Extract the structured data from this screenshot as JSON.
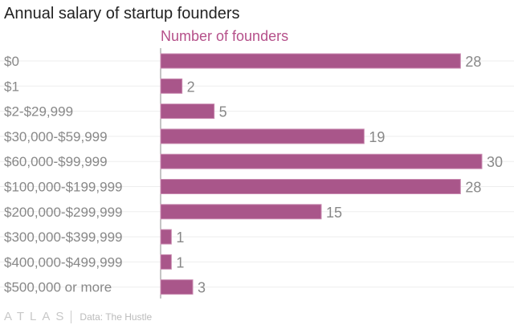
{
  "chart_data": {
    "type": "bar",
    "orientation": "horizontal",
    "title": "Annual salary of startup founders",
    "subtitle": "Number of founders",
    "categories": [
      "$0",
      "$1",
      "$2-$29,999",
      "$30,000-$59,999",
      "$60,000-$99,999",
      "$100,000-$199,999",
      "$200,000-$299,999",
      "$300,000-$399,999",
      "$400,000-$499,999",
      "$500,000 or more"
    ],
    "values": [
      28,
      2,
      5,
      19,
      30,
      28,
      15,
      1,
      1,
      3
    ],
    "xlim": [
      0,
      30
    ],
    "bar_color": "#a9568a",
    "grid": true
  },
  "footer": {
    "logo": "ATLAS",
    "source": "Data: The Hustle"
  }
}
